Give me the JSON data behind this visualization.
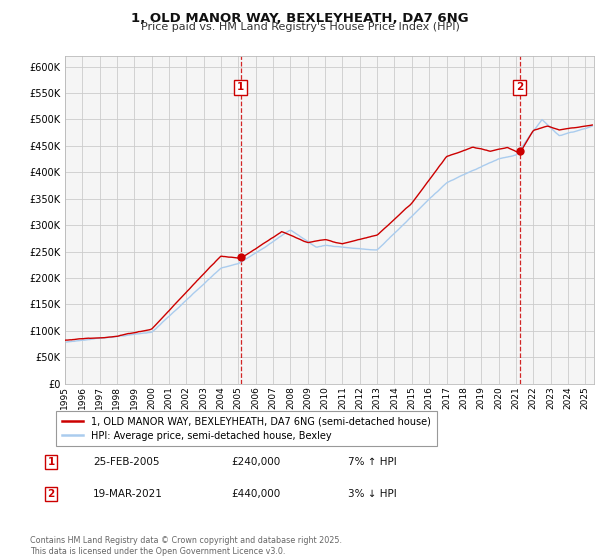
{
  "title": "1, OLD MANOR WAY, BEXLEYHEATH, DA7 6NG",
  "subtitle": "Price paid vs. HM Land Registry's House Price Index (HPI)",
  "title_fontsize": 9.5,
  "subtitle_fontsize": 8.0,
  "red_label": "1, OLD MANOR WAY, BEXLEYHEATH, DA7 6NG (semi-detached house)",
  "blue_label": "HPI: Average price, semi-detached house, Bexley",
  "red_color": "#cc0000",
  "blue_color": "#aaccee",
  "marker1_x": 2005.12,
  "marker1_y": 240000,
  "marker1_label": "1",
  "marker1_date": "25-FEB-2005",
  "marker1_price": "£240,000",
  "marker1_hpi": "7% ↑ HPI",
  "marker2_x": 2021.21,
  "marker2_y": 440000,
  "marker2_label": "2",
  "marker2_date": "19-MAR-2021",
  "marker2_price": "£440,000",
  "marker2_hpi": "3% ↓ HPI",
  "xmin": 1995,
  "xmax": 2025.5,
  "ymin": 0,
  "ymax": 620000,
  "yticks": [
    0,
    50000,
    100000,
    150000,
    200000,
    250000,
    300000,
    350000,
    400000,
    450000,
    500000,
    550000,
    600000
  ],
  "background_color": "#f5f5f5",
  "grid_color": "#cccccc",
  "footer": "Contains HM Land Registry data © Crown copyright and database right 2025.\nThis data is licensed under the Open Government Licence v3.0."
}
